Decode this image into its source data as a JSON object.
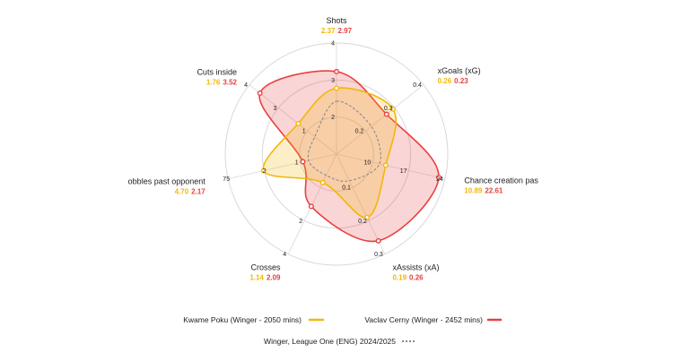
{
  "chart_data": {
    "type": "radar",
    "colors": {
      "player_a": "#f2b705",
      "player_b": "#e8403f",
      "baseline": "#8a8a8a",
      "grid": "#d8d8d8"
    },
    "axes": [
      {
        "name": "Shots",
        "ticks": [
          "2",
          "3",
          "4"
        ],
        "min": 0,
        "max": 4,
        "value_a": 2.37,
        "value_b": 2.97,
        "baseline": 1.9
      },
      {
        "name": "xGoals (xG)",
        "ticks": [
          "0.2",
          "0.3",
          "0.4"
        ],
        "min": 0,
        "max": 0.4,
        "value_a": 0.26,
        "value_b": 0.23,
        "baseline": 0.16
      },
      {
        "name": "Chance creation pas",
        "ticks": [
          "10",
          "17",
          "24"
        ],
        "min": 0,
        "max": 24,
        "value_a": 10.89,
        "value_b": 22.61,
        "baseline": 9.5
      },
      {
        "name": "xAssists (xA)",
        "ticks": [
          "0.1",
          "0.2",
          "0.3"
        ],
        "min": 0,
        "max": 0.3,
        "value_a": 0.19,
        "value_b": 0.26,
        "baseline": 0.08
      },
      {
        "name": "Crosses",
        "ticks": [
          "",
          "2",
          "4"
        ],
        "min": 0,
        "max": 4,
        "value_a": 1.14,
        "value_b": 2.09,
        "baseline": 0.85
      },
      {
        "name": "obbles past opponent",
        "ticks": [
          "1",
          "",
          "7"
        ],
        "min": 0,
        "max": 7,
        "value_a": 4.7,
        "value_b": 2.17,
        "baseline": 1.8
      },
      {
        "name": "Cuts inside",
        "ticks": [
          "1",
          "3",
          "4"
        ],
        "min": 0,
        "max": 4,
        "value_a": 1.76,
        "value_b": 3.52,
        "baseline": 1.0
      }
    ],
    "extra_ticks": [
      {
        "axis": 5,
        "label": "2",
        "ring": 1
      },
      {
        "axis": 5,
        "label": "5",
        "ring": 2
      }
    ],
    "labels_a": [
      "2.37",
      "0.26",
      "10.89",
      "0.19",
      "1.14",
      "4.70",
      "1.76"
    ],
    "labels_b": [
      "2.97",
      "0.23",
      "22.61",
      "0.26",
      "2.09",
      "2.17",
      "3.52"
    ],
    "series": [
      {
        "name": "Kwame Poku (Winger - 2050 mins)",
        "color": "#f2b705"
      },
      {
        "name": "Vaclav Cerny (Winger - 2452 mins)",
        "color": "#e8403f"
      },
      {
        "name": "Winger, League One (ENG) 2024/2025",
        "color": "#8a8a8a"
      }
    ]
  }
}
